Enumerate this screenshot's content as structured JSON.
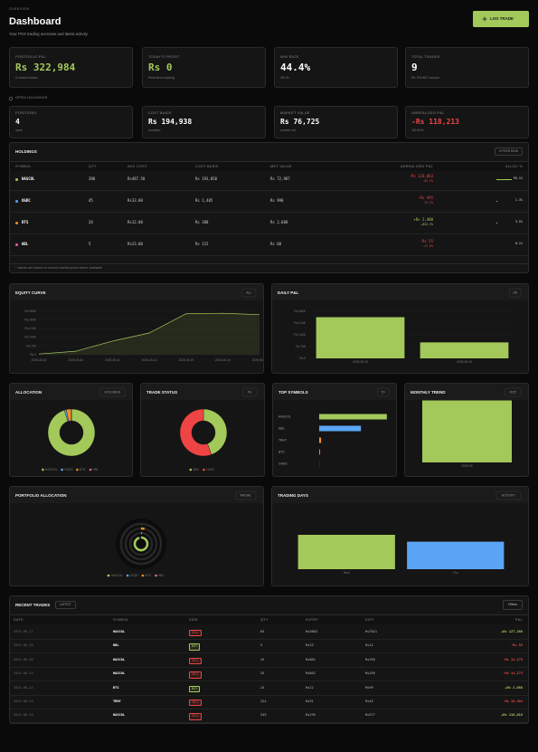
{
  "header": {
    "eyebrow": "OVERVIEW",
    "title": "Dashboard",
    "subtitle": "Your PSX trading overview and latest activity.",
    "button": "LOG TRADE"
  },
  "stats": [
    {
      "label": "PORTFOLIO P&L",
      "value": "Rs 322,984",
      "note": "9 closed trades",
      "color": "#a3c95a"
    },
    {
      "label": "TODAY'S PROFIT",
      "value": "Rs 0",
      "note": "Real-time tracking",
      "color": "#a3c95a"
    },
    {
      "label": "WIN RATE",
      "value": "44.4%",
      "note": "4W 5L",
      "color": "#ffffff"
    },
    {
      "label": "TOTAL TRADES",
      "value": "9",
      "note": "Rs 709,867 volume",
      "color": "#ffffff"
    }
  ],
  "holdings_label": "OPEN HOLDINGS",
  "holding_stats": [
    {
      "label": "POSITIONS",
      "value": "4",
      "note": "open",
      "color": "#ffffff"
    },
    {
      "label": "COST BASIS",
      "value": "Rs 194,938",
      "note": "invested",
      "color": "#ffffff"
    },
    {
      "label": "MARKET VALUE",
      "value": "Rs 76,725",
      "note": "current val",
      "color": "#ffffff"
    },
    {
      "label": "UNREALIZED P&L",
      "value": "-Rs 118,213",
      "note": "-60.64%",
      "color": "#ef4444"
    }
  ],
  "holdings": {
    "title": "HOLDINGS",
    "badge": "4 POSITIONS",
    "columns": [
      "SYMBOL",
      "QTY",
      "AVG COST",
      "COST BASIS",
      "MKT VALUE",
      "UNREALIZED P&L",
      "ALLOC %"
    ],
    "symbol_colors": [
      "#a3c95a",
      "#5aa5f5",
      "#f0922a",
      "#e960b0"
    ],
    "rows": [
      [
        "HASCOL",
        "396",
        "Rs487.50",
        "Rs 193,050",
        "Rs 72,987",
        "-Rs 120,063",
        "-62.2%",
        "95.1%"
      ],
      [
        "OGDC",
        "45",
        "Rs33.00",
        "Rs 1,485",
        "Rs 990",
        "-Rs 495",
        "-33.3%",
        "1.3%"
      ],
      [
        "BTS",
        "24",
        "Rs12.00",
        "Rs 288",
        "Rs 2,688",
        "+Rs 2,400",
        "+833.3%",
        "3.5%"
      ],
      [
        "HBL",
        "5",
        "Rs23.00",
        "Rs 115",
        "Rs 60",
        "-Rs 55",
        "-47.8%",
        "0.1%"
      ]
    ],
    "note": "* Values are based on current market prices where available"
  },
  "chart_data": [
    {
      "type": "line",
      "title": "EQUITY CURVE",
      "badge": "ALL",
      "categories": [
        "2025-06-02",
        "2025-06-06",
        "2025-06-11",
        "2025-06-16",
        "2025-06-19",
        "2025-06-24",
        "2025-06-27"
      ],
      "values": [
        6000,
        28000,
        110000,
        175000,
        330000,
        334000,
        322984
      ],
      "color": "#a3c95a",
      "ylim": [
        0,
        350000
      ],
      "yticks": [
        {
          "value": 0,
          "label": "Rs 0"
        },
        {
          "value": 70000,
          "label": "Rs 70K"
        },
        {
          "value": 140000,
          "label": "Rs 140K"
        },
        {
          "value": 210000,
          "label": "Rs 210K"
        },
        {
          "value": 280000,
          "label": "Rs 280K"
        },
        {
          "value": 350000,
          "label": "Rs 350K"
        }
      ]
    },
    {
      "type": "bar",
      "title": "DAILY P&L",
      "badge": "1W",
      "categories": [
        "2025-06-25",
        "2025-06-26"
      ],
      "values": [
        245000,
        95000
      ],
      "color": "#a3c95a",
      "ylim": [
        0,
        280000
      ],
      "yticks": [
        {
          "value": 0,
          "label": "Rs 0"
        },
        {
          "value": 70000,
          "label": "Rs 70K"
        },
        {
          "value": 140000,
          "label": "Rs 140K"
        },
        {
          "value": 210000,
          "label": "Rs 210K"
        },
        {
          "value": 280000,
          "label": "Rs 280K"
        }
      ]
    },
    {
      "type": "donut",
      "title": "ALLOCATION",
      "badge": "HOLDINGS",
      "categories": [
        "HASCOL",
        "OGDC",
        "BTS",
        "HBL"
      ],
      "values": [
        95.1,
        1.3,
        3.5,
        0.1
      ],
      "colors": [
        "#a3c95a",
        "#5aa5f5",
        "#f0922a",
        "#e960b0"
      ]
    },
    {
      "type": "donut",
      "title": "TRADE STATUS",
      "badge": "P/L",
      "categories": [
        "WIN",
        "LOSS"
      ],
      "values": [
        4,
        5
      ],
      "colors": [
        "#a3c95a",
        "#ef4444"
      ]
    },
    {
      "type": "hbar",
      "title": "TOP SYMBOLS",
      "badge": "7D",
      "categories": [
        "HASCOL",
        "HBL",
        "TRHY",
        "BTS",
        "OGDC"
      ],
      "values": [
        640000,
        395000,
        18000,
        9000,
        1200
      ],
      "colors": [
        "#a3c95a",
        "#5aa5f5",
        "#f0922a",
        "#e960b0",
        "#5aa5f5"
      ],
      "xlim": [
        0,
        650000
      ]
    },
    {
      "type": "bar",
      "title": "MONTHLY TREND",
      "badge": "2025",
      "categories": [
        "2025-06"
      ],
      "values": [
        322984
      ],
      "color": "#a3c95a",
      "ylim": [
        0,
        330000
      ]
    },
    {
      "type": "radial",
      "title": "PORTFOLIO ALLOCATION",
      "badge": "RADIAL",
      "categories": [
        "HASCOL",
        "OGDC",
        "BTS",
        "HBL"
      ],
      "values": [
        95.1,
        1.3,
        3.5,
        0.1
      ],
      "colors": [
        "#a3c95a",
        "#5aa5f5",
        "#f0922a",
        "#e960b0"
      ]
    },
    {
      "type": "bar",
      "title": "TRADING DAYS",
      "badge": "ACTIVITY",
      "categories": [
        "Wed",
        "Thu"
      ],
      "values": [
        5,
        4
      ],
      "colors": [
        "#a3c95a",
        "#5aa5f5"
      ],
      "ylim": [
        0,
        5
      ]
    }
  ],
  "trades": {
    "title": "RECENT TRADES",
    "badge": "LATEST",
    "button": "Filters",
    "columns": [
      "DATE",
      "SYMBOL",
      "SIDE",
      "QTY",
      "ENTRY",
      "EXIT",
      "P&L"
    ],
    "rows": [
      [
        "2025-06-27",
        "HASCOL",
        "SELL",
        "65",
        "Rs5863",
        "Rs7821",
        "+Rs 127,260"
      ],
      [
        "2025-06-26",
        "HBL",
        "BUY",
        "5",
        "Rs23",
        "Rs12",
        "-Rs 55"
      ],
      [
        "2025-06-26",
        "HASCOL",
        "SELL",
        "25",
        "Rs862",
        "Rs295",
        "-Rs 14,175"
      ],
      [
        "2025-06-25",
        "HASCOL",
        "SELL",
        "25",
        "Rs862",
        "Rs295",
        "-Rs 14,175"
      ],
      [
        "2025-06-24",
        "BTS",
        "BUY",
        "24",
        "Rs12",
        "Rs99",
        "+Rs 2,088"
      ],
      [
        "2025-06-23",
        "TRHY",
        "SELL",
        "224",
        "Rs91",
        "Rs45",
        "-Rs 10,304"
      ],
      [
        "2025-06-20",
        "HASCOL",
        "SELL",
        "345",
        "Rs239",
        "Rs577",
        "+Rs 116,610"
      ]
    ]
  }
}
